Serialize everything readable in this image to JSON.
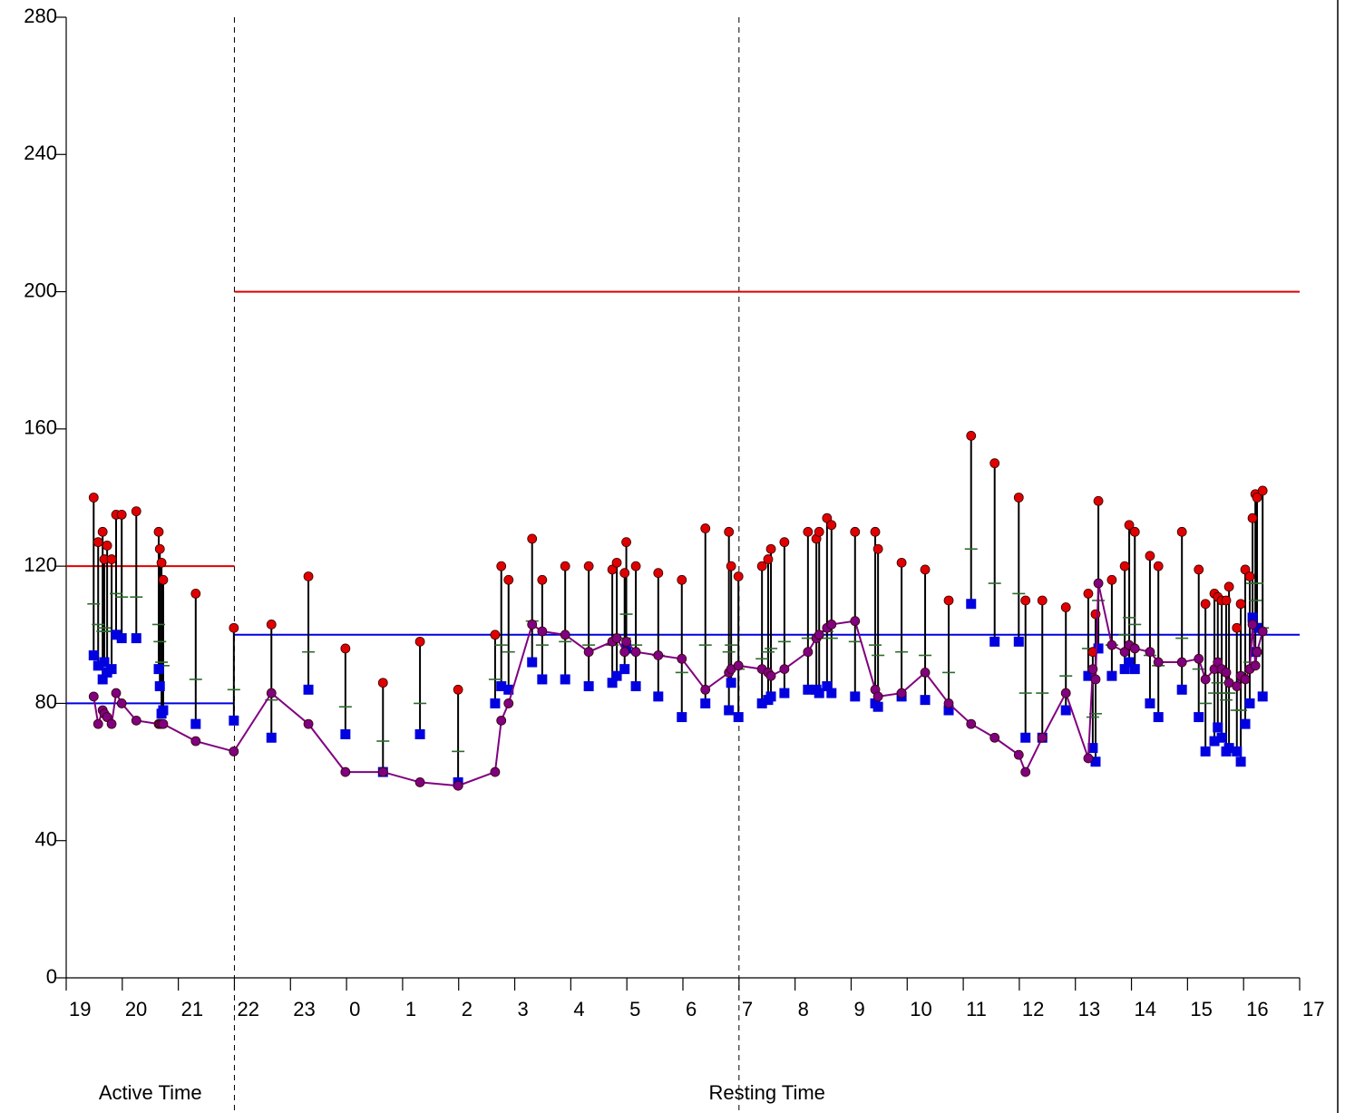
{
  "chart_data": {
    "type": "scatter",
    "x": [
      0.49,
      0.57,
      0.65,
      0.68,
      0.73,
      0.81,
      0.89,
      0.99,
      1.25,
      1.65,
      1.67,
      1.7,
      1.73,
      2.31,
      2.99,
      3.66,
      4.32,
      4.98,
      5.65,
      6.31,
      6.99,
      7.65,
      7.76,
      7.89,
      8.31,
      8.49,
      8.9,
      9.32,
      9.74,
      9.82,
      9.96,
      9.99,
      10.16,
      10.56,
      10.98,
      11.4,
      11.82,
      11.86,
      11.99,
      12.41,
      12.52,
      12.57,
      12.81,
      13.23,
      13.38,
      13.43,
      13.57,
      13.65,
      14.07,
      14.43,
      14.48,
      14.9,
      15.32,
      15.74,
      16.14,
      16.56,
      16.99,
      17.11,
      17.41,
      17.83,
      18.23,
      18.31,
      18.36,
      18.41,
      18.65,
      18.88,
      18.96,
      19.06,
      19.33,
      19.48,
      19.9,
      20.2,
      20.32,
      20.48,
      20.54,
      20.61,
      20.69,
      20.74,
      20.88,
      20.95,
      21.03,
      21.11,
      21.16,
      21.21,
      21.24,
      21.34
    ],
    "series": [
      {
        "color": "#e00000",
        "marker": "circle",
        "values": [
          140,
          127,
          130,
          122,
          126,
          122,
          135,
          135,
          136,
          130,
          125,
          121,
          116,
          112,
          102,
          103,
          117,
          96,
          86,
          98,
          84,
          100,
          120,
          116,
          128,
          116,
          120,
          120,
          119,
          121,
          118,
          127,
          120,
          118,
          116,
          131,
          130,
          120,
          117,
          120,
          122,
          125,
          127,
          130,
          128,
          130,
          134,
          132,
          130,
          130,
          125,
          121,
          119,
          110,
          158,
          150,
          140,
          110,
          110,
          108,
          112,
          95,
          106,
          139,
          116,
          120,
          132,
          130,
          123,
          120,
          130,
          119,
          109,
          112,
          111,
          110,
          110,
          114,
          102,
          109,
          119,
          117,
          134,
          141,
          140,
          142
        ]
      },
      {
        "color": "#0000e0",
        "marker": "square",
        "values": [
          94,
          91,
          87,
          92,
          89,
          90,
          100,
          99,
          99,
          90,
          85,
          77,
          78,
          74,
          75,
          70,
          84,
          71,
          60,
          71,
          57,
          80,
          85,
          84,
          92,
          87,
          87,
          85,
          86,
          88,
          90,
          96,
          85,
          82,
          76,
          80,
          78,
          86,
          76,
          80,
          81,
          82,
          83,
          84,
          84,
          83,
          85,
          83,
          82,
          80,
          79,
          82,
          81,
          78,
          109,
          98,
          98,
          70,
          70,
          78,
          88,
          67,
          63,
          96,
          88,
          90,
          92,
          90,
          80,
          76,
          84,
          76,
          66,
          69,
          73,
          70,
          66,
          67,
          66,
          63,
          74,
          80,
          105,
          95,
          102,
          82
        ]
      },
      {
        "color": "#2e6b2e",
        "marker": "dash",
        "values": [
          109,
          103,
          101,
          102,
          101,
          101,
          112,
          111,
          111,
          103,
          98,
          92,
          91,
          87,
          84,
          81,
          95,
          79,
          69,
          80,
          66,
          87,
          97,
          95,
          104,
          97,
          98,
          97,
          97,
          99,
          99,
          106,
          97,
          94,
          89,
          97,
          95,
          97,
          90,
          93,
          95,
          96,
          98,
          99,
          99,
          99,
          101,
          99,
          98,
          97,
          94,
          95,
          94,
          89,
          125,
          115,
          112,
          83,
          83,
          88,
          96,
          76,
          77,
          110,
          97,
          100,
          105,
          103,
          94,
          91,
          99,
          90,
          80,
          83,
          86,
          83,
          81,
          83,
          78,
          78,
          89,
          92,
          115,
          110,
          115,
          102
        ]
      },
      {
        "color": "#800080",
        "marker": "circle",
        "line": true,
        "values": [
          82,
          74,
          78,
          77,
          76,
          74,
          83,
          80,
          75,
          74,
          74,
          74,
          74,
          69,
          66,
          83,
          74,
          60,
          60,
          57,
          56,
          60,
          75,
          80,
          103,
          101,
          100,
          95,
          98,
          99,
          95,
          98,
          95,
          94,
          93,
          84,
          89,
          90,
          91,
          90,
          89,
          88,
          90,
          95,
          99,
          100,
          102,
          103,
          104,
          84,
          82,
          83,
          89,
          80,
          74,
          70,
          65,
          60,
          70,
          83,
          64,
          90,
          87,
          115,
          97,
          95,
          97,
          96,
          95,
          92,
          92,
          93,
          87,
          90,
          92,
          90,
          89,
          86,
          85,
          88,
          87,
          90,
          103,
          91,
          95,
          101
        ]
      }
    ],
    "range_lines": {
      "from": 1,
      "to": 0,
      "color": "#000000"
    },
    "reference_lines": [
      {
        "x": [
          0,
          3
        ],
        "y": [
          120,
          120
        ],
        "color": "#e00000"
      },
      {
        "x": [
          3,
          22
        ],
        "y": [
          200,
          200
        ],
        "color": "#e00000"
      },
      {
        "x": [
          0,
          3
        ],
        "y": [
          80,
          80
        ],
        "color": "#0000e0"
      },
      {
        "x": [
          3,
          22
        ],
        "y": [
          100,
          100
        ],
        "color": "#0000e0"
      }
    ],
    "vlines": [
      3,
      12
    ],
    "periods": [
      {
        "label": "Active Time",
        "start": 0,
        "end": 3
      },
      {
        "label": "Resting Time",
        "start": 3,
        "end": 22
      }
    ],
    "xlim": [
      0,
      22
    ],
    "xticks": [
      {
        "value": 0,
        "label": "19"
      },
      {
        "value": 1,
        "label": "20"
      },
      {
        "value": 2,
        "label": "21"
      },
      {
        "value": 3,
        "label": "22"
      },
      {
        "value": 4,
        "label": "23"
      },
      {
        "value": 5,
        "label": "0"
      },
      {
        "value": 6,
        "label": "1"
      },
      {
        "value": 7,
        "label": "2"
      },
      {
        "value": 8,
        "label": "3"
      },
      {
        "value": 9,
        "label": "4"
      },
      {
        "value": 10,
        "label": "5"
      },
      {
        "value": 11,
        "label": "6"
      },
      {
        "value": 12,
        "label": "7"
      },
      {
        "value": 13,
        "label": "8"
      },
      {
        "value": 14,
        "label": "9"
      },
      {
        "value": 15,
        "label": "10"
      },
      {
        "value": 16,
        "label": "11"
      },
      {
        "value": 17,
        "label": "12"
      },
      {
        "value": 18,
        "label": "13"
      },
      {
        "value": 19,
        "label": "14"
      },
      {
        "value": 20,
        "label": "15"
      },
      {
        "value": 21,
        "label": "16"
      },
      {
        "value": 22,
        "label": "17"
      }
    ],
    "ylim": [
      0,
      280
    ],
    "yticks": [
      0,
      40,
      80,
      120,
      160,
      200,
      240,
      280
    ]
  }
}
